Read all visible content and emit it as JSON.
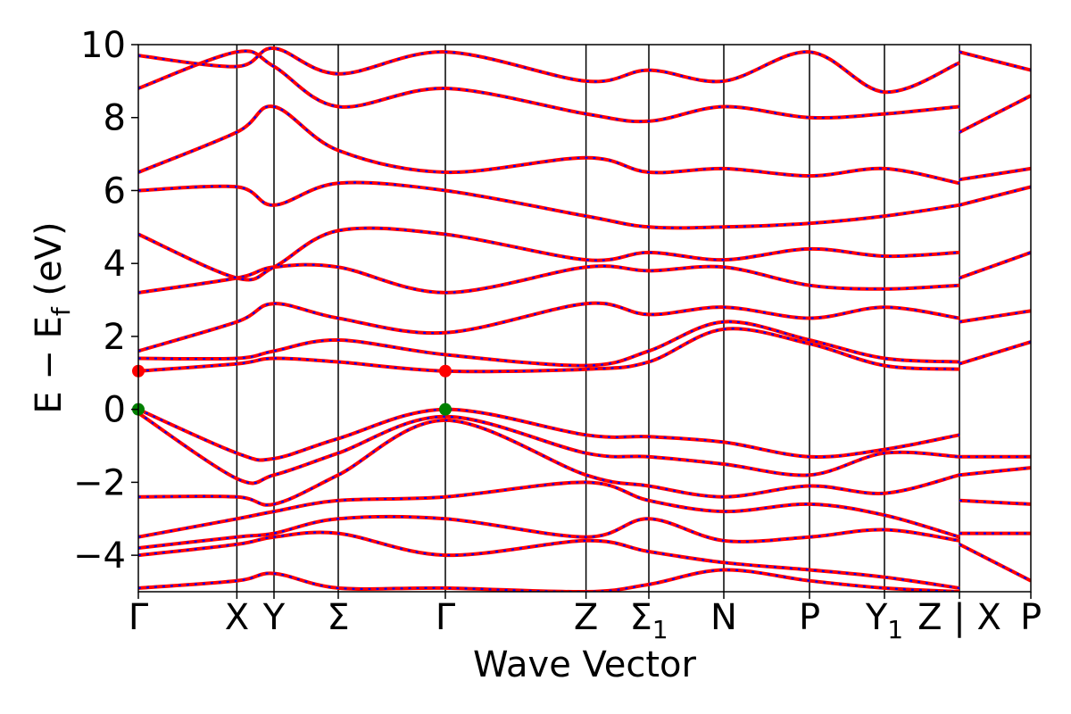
{
  "chart_data": {
    "type": "line",
    "title": "",
    "xlabel": "Wave Vector",
    "ylabel": "E − E_f (eV)",
    "ylabel_parts": {
      "main": "E − E",
      "sub": "f",
      "unit": " (eV)"
    },
    "ylim": [
      -5,
      10
    ],
    "yticks": [
      10,
      8,
      6,
      4,
      2,
      0,
      -2,
      -4
    ],
    "ytick_labels": [
      "10",
      "8",
      "6",
      "4",
      "2",
      "0",
      "−2",
      "−4"
    ],
    "xlim": [
      0,
      12.5
    ],
    "kpoints": [
      {
        "label": "Γ",
        "x": 0.0
      },
      {
        "label": "X",
        "x": 1.38
      },
      {
        "label": "Y",
        "x": 1.9
      },
      {
        "label": "Σ",
        "x": 2.8
      },
      {
        "label": "Γ",
        "x": 4.3
      },
      {
        "label": "Z",
        "x": 6.27
      },
      {
        "label": "Σ",
        "sub": "1",
        "x": 7.15
      },
      {
        "label": "N",
        "x": 8.2
      },
      {
        "label": "P",
        "x": 9.4
      },
      {
        "label": "Y",
        "sub": "1",
        "x": 10.45
      },
      {
        "label": "Z | X",
        "x": 11.5
      },
      {
        "label": "P",
        "x": 12.5
      }
    ],
    "path_break_x": 11.5,
    "line_colors": {
      "dft": "#ff0000",
      "interp": "#0000ff"
    },
    "band_extrema": [
      {
        "kind": "vbm",
        "x": 0.0,
        "y": 0.0,
        "color": "#008000"
      },
      {
        "kind": "vbm",
        "x": 4.3,
        "y": 0.0,
        "color": "#008000"
      },
      {
        "kind": "cbm",
        "x": 0.0,
        "y": 1.05,
        "color": "#ff0000"
      },
      {
        "kind": "cbm",
        "x": 4.3,
        "y": 1.05,
        "color": "#ff0000"
      }
    ],
    "series": [
      {
        "x": [
          0,
          1.38,
          1.9,
          2.8,
          4.3,
          6.27,
          7.15,
          8.2,
          9.4,
          10.45,
          11.5
        ],
        "y": [
          0.0,
          -1.2,
          -1.35,
          -0.8,
          0.0,
          -0.7,
          -0.75,
          -0.9,
          -1.3,
          -1.1,
          -0.7
        ]
      },
      {
        "x": [
          0,
          1.38,
          1.9,
          2.8,
          4.3,
          6.27,
          7.15,
          8.2,
          9.4,
          10.45,
          11.5
        ],
        "y": [
          -0.1,
          -1.9,
          -1.8,
          -1.2,
          -0.2,
          -1.2,
          -1.3,
          -1.5,
          -1.8,
          -1.2,
          -1.3
        ]
      },
      {
        "x": [
          0,
          1.38,
          1.9,
          2.8,
          4.3,
          6.27,
          7.15,
          8.2,
          9.4,
          10.45,
          11.5
        ],
        "y": [
          -2.4,
          -2.4,
          -2.6,
          -1.8,
          -0.3,
          -1.8,
          -2.1,
          -2.4,
          -2.1,
          -2.3,
          -1.8
        ]
      },
      {
        "x": [
          0,
          1.38,
          1.9,
          2.8,
          4.3,
          6.27,
          7.15,
          8.2,
          9.4,
          10.45,
          11.5
        ],
        "y": [
          -3.5,
          -3.0,
          -2.8,
          -2.5,
          -2.4,
          -2.0,
          -2.5,
          -2.8,
          -2.6,
          -2.9,
          -3.5
        ]
      },
      {
        "x": [
          0,
          1.38,
          1.9,
          2.8,
          4.3,
          6.27,
          7.15,
          8.2,
          9.4,
          10.45,
          11.5
        ],
        "y": [
          -3.8,
          -3.5,
          -3.4,
          -3.0,
          -3.0,
          -3.5,
          -3.0,
          -3.6,
          -3.5,
          -3.3,
          -3.6
        ]
      },
      {
        "x": [
          0,
          1.38,
          1.9,
          2.8,
          4.3,
          6.27,
          7.15,
          8.2,
          9.4,
          10.45,
          11.5
        ],
        "y": [
          -4.0,
          -3.7,
          -3.5,
          -3.4,
          -4.0,
          -3.6,
          -3.9,
          -4.2,
          -4.4,
          -4.6,
          -4.9
        ]
      },
      {
        "x": [
          0,
          1.38,
          1.9,
          2.8,
          4.3,
          6.27,
          7.15,
          8.2,
          9.4,
          10.45,
          11.5
        ],
        "y": [
          -4.9,
          -4.7,
          -4.5,
          -4.9,
          -4.9,
          -5.0,
          -4.8,
          -4.4,
          -4.7,
          -4.9,
          -5.0
        ]
      },
      {
        "x": [
          0,
          1.38,
          1.9,
          2.8,
          4.3,
          6.27,
          7.15,
          8.2,
          9.4,
          10.45,
          11.5
        ],
        "y": [
          1.05,
          1.25,
          1.4,
          1.3,
          1.05,
          1.1,
          1.3,
          2.2,
          1.8,
          1.2,
          1.1
        ]
      },
      {
        "x": [
          0,
          1.38,
          1.9,
          2.8,
          4.3,
          6.27,
          7.15,
          8.2,
          9.4,
          10.45,
          11.5
        ],
        "y": [
          1.4,
          1.4,
          1.6,
          1.9,
          1.5,
          1.2,
          1.6,
          2.4,
          1.9,
          1.4,
          1.3
        ]
      },
      {
        "x": [
          0,
          1.38,
          1.9,
          2.8,
          4.3,
          6.27,
          7.15,
          8.2,
          9.4,
          10.45,
          11.5
        ],
        "y": [
          1.6,
          2.4,
          2.9,
          2.5,
          2.1,
          2.9,
          2.6,
          2.8,
          2.5,
          2.8,
          2.5
        ]
      },
      {
        "x": [
          0,
          1.38,
          1.9,
          2.8,
          4.3,
          6.27,
          7.15,
          8.2,
          9.4,
          10.45,
          11.5
        ],
        "y": [
          3.2,
          3.6,
          3.9,
          3.9,
          3.2,
          3.9,
          3.8,
          3.9,
          3.4,
          3.3,
          3.4
        ]
      },
      {
        "x": [
          0,
          1.38,
          1.9,
          2.8,
          4.3,
          6.27,
          7.15,
          8.2,
          9.4,
          10.45,
          11.5
        ],
        "y": [
          4.8,
          3.6,
          3.9,
          4.9,
          4.8,
          4.1,
          4.3,
          4.1,
          4.4,
          4.2,
          4.3
        ]
      },
      {
        "x": [
          0,
          1.38,
          1.9,
          2.8,
          4.3,
          6.27,
          7.15,
          8.2,
          9.4,
          10.45,
          11.5
        ],
        "y": [
          6.0,
          6.1,
          5.6,
          6.2,
          6.0,
          5.3,
          5.0,
          5.0,
          5.1,
          5.3,
          5.6
        ]
      },
      {
        "x": [
          0,
          1.38,
          1.9,
          2.8,
          4.3,
          6.27,
          7.15,
          8.2,
          9.4,
          10.45,
          11.5
        ],
        "y": [
          6.5,
          7.6,
          8.3,
          7.1,
          6.5,
          6.9,
          6.5,
          6.6,
          6.4,
          6.6,
          6.2
        ]
      },
      {
        "x": [
          0,
          1.38,
          1.9,
          2.8,
          4.3,
          6.27,
          7.15,
          8.2,
          9.4,
          10.45,
          11.5
        ],
        "y": [
          8.8,
          9.8,
          9.4,
          8.3,
          8.8,
          8.1,
          7.9,
          8.3,
          8.0,
          8.1,
          8.3
        ]
      },
      {
        "x": [
          0,
          1.38,
          1.9,
          2.8,
          4.3,
          6.27,
          7.15,
          8.2,
          9.4,
          10.45,
          11.5
        ],
        "y": [
          9.7,
          9.4,
          9.9,
          9.2,
          9.8,
          9.0,
          9.3,
          9.0,
          9.8,
          8.7,
          9.5
        ]
      },
      {
        "x": [
          11.5,
          12.5
        ],
        "y": [
          -1.3,
          -1.3
        ]
      },
      {
        "x": [
          11.5,
          12.5
        ],
        "y": [
          -1.8,
          -1.6
        ]
      },
      {
        "x": [
          11.5,
          12.5
        ],
        "y": [
          -2.5,
          -2.6
        ]
      },
      {
        "x": [
          11.5,
          12.5
        ],
        "y": [
          -3.4,
          -3.4
        ]
      },
      {
        "x": [
          11.5,
          12.5
        ],
        "y": [
          -3.7,
          -4.7
        ]
      },
      {
        "x": [
          11.5,
          12.5
        ],
        "y": [
          1.25,
          1.85
        ]
      },
      {
        "x": [
          11.5,
          12.5
        ],
        "y": [
          2.4,
          2.7
        ]
      },
      {
        "x": [
          11.5,
          12.5
        ],
        "y": [
          3.6,
          4.3
        ]
      },
      {
        "x": [
          11.5,
          12.5
        ],
        "y": [
          5.6,
          6.1
        ]
      },
      {
        "x": [
          11.5,
          12.5
        ],
        "y": [
          6.3,
          6.6
        ]
      },
      {
        "x": [
          11.5,
          12.5
        ],
        "y": [
          7.6,
          8.6
        ]
      },
      {
        "x": [
          11.5,
          12.5
        ],
        "y": [
          9.8,
          9.3
        ]
      }
    ]
  }
}
